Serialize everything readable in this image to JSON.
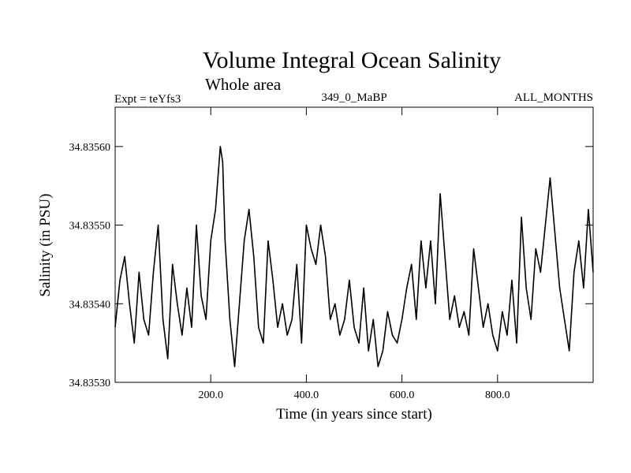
{
  "chart_data": {
    "type": "line",
    "title": "Volume Integral Ocean Salinity",
    "subtitle": "Whole area",
    "header_left": "Expt = teYfs3",
    "header_center": "349_0_MaBP",
    "header_right": "ALL_MONTHS",
    "xlabel": "Time (in years since start)",
    "ylabel": "Salinity (in PSU)",
    "xlim": [
      0,
      1000
    ],
    "ylim": [
      34.8353,
      34.83565
    ],
    "xticks": [
      200,
      400,
      600,
      800
    ],
    "xtick_labels": [
      "200.0",
      "400.0",
      "600.0",
      "800.0"
    ],
    "yticks": [
      34.8353,
      34.8354,
      34.8355,
      34.8356
    ],
    "ytick_labels": [
      "34.83530",
      "34.83540",
      "34.83550",
      "34.83560"
    ],
    "grid": false,
    "series": [
      {
        "name": "Salinity",
        "x": [
          0,
          10,
          20,
          30,
          40,
          50,
          60,
          70,
          80,
          90,
          100,
          110,
          120,
          130,
          140,
          150,
          160,
          170,
          180,
          190,
          200,
          210,
          215,
          220,
          225,
          230,
          240,
          250,
          260,
          270,
          280,
          290,
          300,
          310,
          320,
          330,
          340,
          350,
          360,
          370,
          380,
          390,
          400,
          410,
          420,
          430,
          440,
          450,
          460,
          470,
          480,
          490,
          500,
          510,
          520,
          530,
          540,
          550,
          560,
          570,
          580,
          590,
          600,
          610,
          620,
          630,
          640,
          650,
          660,
          670,
          680,
          690,
          700,
          710,
          720,
          730,
          740,
          750,
          760,
          770,
          780,
          790,
          800,
          810,
          820,
          830,
          840,
          850,
          860,
          870,
          880,
          890,
          900,
          910,
          920,
          930,
          940,
          950,
          960,
          970,
          980,
          990,
          1000
        ],
        "values": [
          34.83537,
          34.83543,
          34.83546,
          34.8354,
          34.83535,
          34.83544,
          34.83538,
          34.83536,
          34.83544,
          34.8355,
          34.83538,
          34.83533,
          34.83545,
          34.8354,
          34.83536,
          34.83542,
          34.83537,
          34.8355,
          34.83541,
          34.83538,
          34.83548,
          34.83552,
          34.83556,
          34.8356,
          34.83558,
          34.83548,
          34.83538,
          34.83532,
          34.8354,
          34.83548,
          34.83552,
          34.83546,
          34.83537,
          34.83535,
          34.83548,
          34.83543,
          34.83537,
          34.8354,
          34.83536,
          34.83538,
          34.83545,
          34.83535,
          34.8355,
          34.83547,
          34.83545,
          34.8355,
          34.83546,
          34.83538,
          34.8354,
          34.83536,
          34.83538,
          34.83543,
          34.83537,
          34.83535,
          34.83542,
          34.83534,
          34.83538,
          34.83532,
          34.83534,
          34.83539,
          34.83536,
          34.83535,
          34.83538,
          34.83542,
          34.83545,
          34.83538,
          34.83548,
          34.83542,
          34.83548,
          34.8354,
          34.83554,
          34.83546,
          34.83538,
          34.83541,
          34.83537,
          34.83539,
          34.83536,
          34.83547,
          34.83542,
          34.83537,
          34.8354,
          34.83536,
          34.83534,
          34.83539,
          34.83536,
          34.83543,
          34.83535,
          34.83551,
          34.83542,
          34.83538,
          34.83547,
          34.83544,
          34.8355,
          34.83556,
          34.83549,
          34.83542,
          34.83538,
          34.83534,
          34.83544,
          34.83548,
          34.83542,
          34.83552,
          34.83544
        ]
      }
    ]
  }
}
